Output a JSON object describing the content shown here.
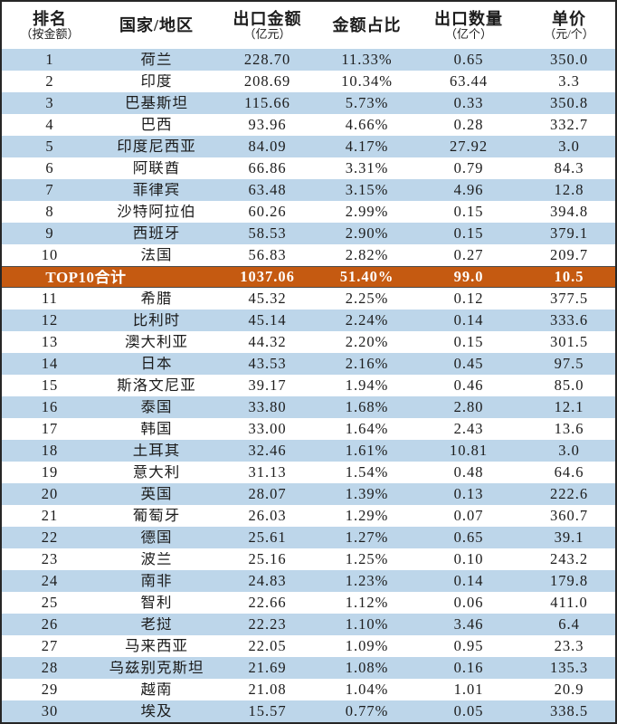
{
  "chart_data": {
    "type": "table",
    "columns": [
      {
        "title": "排名",
        "sub": "（按金额）"
      },
      {
        "title": "国家/地区",
        "sub": ""
      },
      {
        "title": "出口金额",
        "sub": "（亿元）"
      },
      {
        "title": "金额占比",
        "sub": ""
      },
      {
        "title": "出口数量",
        "sub": "（亿个）"
      },
      {
        "title": "单价",
        "sub": "（元/个）"
      }
    ],
    "rows": [
      {
        "rank": "1",
        "country": "荷兰",
        "amount": "228.70",
        "share": "11.33%",
        "qty": "0.65",
        "price": "350.0"
      },
      {
        "rank": "2",
        "country": "印度",
        "amount": "208.69",
        "share": "10.34%",
        "qty": "63.44",
        "price": "3.3"
      },
      {
        "rank": "3",
        "country": "巴基斯坦",
        "amount": "115.66",
        "share": "5.73%",
        "qty": "0.33",
        "price": "350.8"
      },
      {
        "rank": "4",
        "country": "巴西",
        "amount": "93.96",
        "share": "4.66%",
        "qty": "0.28",
        "price": "332.7"
      },
      {
        "rank": "5",
        "country": "印度尼西亚",
        "amount": "84.09",
        "share": "4.17%",
        "qty": "27.92",
        "price": "3.0"
      },
      {
        "rank": "6",
        "country": "阿联酋",
        "amount": "66.86",
        "share": "3.31%",
        "qty": "0.79",
        "price": "84.3"
      },
      {
        "rank": "7",
        "country": "菲律宾",
        "amount": "63.48",
        "share": "3.15%",
        "qty": "4.96",
        "price": "12.8"
      },
      {
        "rank": "8",
        "country": "沙特阿拉伯",
        "amount": "60.26",
        "share": "2.99%",
        "qty": "0.15",
        "price": "394.8"
      },
      {
        "rank": "9",
        "country": "西班牙",
        "amount": "58.53",
        "share": "2.90%",
        "qty": "0.15",
        "price": "379.1"
      },
      {
        "rank": "10",
        "country": "法国",
        "amount": "56.83",
        "share": "2.82%",
        "qty": "0.27",
        "price": "209.7"
      },
      {
        "rank": "11",
        "country": "希腊",
        "amount": "45.32",
        "share": "2.25%",
        "qty": "0.12",
        "price": "377.5"
      },
      {
        "rank": "12",
        "country": "比利时",
        "amount": "45.14",
        "share": "2.24%",
        "qty": "0.14",
        "price": "333.6"
      },
      {
        "rank": "13",
        "country": "澳大利亚",
        "amount": "44.32",
        "share": "2.20%",
        "qty": "0.15",
        "price": "301.5"
      },
      {
        "rank": "14",
        "country": "日本",
        "amount": "43.53",
        "share": "2.16%",
        "qty": "0.45",
        "price": "97.5"
      },
      {
        "rank": "15",
        "country": "斯洛文尼亚",
        "amount": "39.17",
        "share": "1.94%",
        "qty": "0.46",
        "price": "85.0"
      },
      {
        "rank": "16",
        "country": "泰国",
        "amount": "33.80",
        "share": "1.68%",
        "qty": "2.80",
        "price": "12.1"
      },
      {
        "rank": "17",
        "country": "韩国",
        "amount": "33.00",
        "share": "1.64%",
        "qty": "2.43",
        "price": "13.6"
      },
      {
        "rank": "18",
        "country": "土耳其",
        "amount": "32.46",
        "share": "1.61%",
        "qty": "10.81",
        "price": "3.0"
      },
      {
        "rank": "19",
        "country": "意大利",
        "amount": "31.13",
        "share": "1.54%",
        "qty": "0.48",
        "price": "64.6"
      },
      {
        "rank": "20",
        "country": "英国",
        "amount": "28.07",
        "share": "1.39%",
        "qty": "0.13",
        "price": "222.6"
      },
      {
        "rank": "21",
        "country": "葡萄牙",
        "amount": "26.03",
        "share": "1.29%",
        "qty": "0.07",
        "price": "360.7"
      },
      {
        "rank": "22",
        "country": "德国",
        "amount": "25.61",
        "share": "1.27%",
        "qty": "0.65",
        "price": "39.1"
      },
      {
        "rank": "23",
        "country": "波兰",
        "amount": "25.16",
        "share": "1.25%",
        "qty": "0.10",
        "price": "243.2"
      },
      {
        "rank": "24",
        "country": "南非",
        "amount": "24.83",
        "share": "1.23%",
        "qty": "0.14",
        "price": "179.8"
      },
      {
        "rank": "25",
        "country": "智利",
        "amount": "22.66",
        "share": "1.12%",
        "qty": "0.06",
        "price": "411.0"
      },
      {
        "rank": "26",
        "country": "老挝",
        "amount": "22.23",
        "share": "1.10%",
        "qty": "3.46",
        "price": "6.4"
      },
      {
        "rank": "27",
        "country": "马来西亚",
        "amount": "22.05",
        "share": "1.09%",
        "qty": "0.95",
        "price": "23.3"
      },
      {
        "rank": "28",
        "country": "乌兹别克斯坦",
        "amount": "21.69",
        "share": "1.08%",
        "qty": "0.16",
        "price": "135.3"
      },
      {
        "rank": "29",
        "country": "越南",
        "amount": "21.08",
        "share": "1.04%",
        "qty": "1.01",
        "price": "20.9"
      },
      {
        "rank": "30",
        "country": "埃及",
        "amount": "15.57",
        "share": "0.77%",
        "qty": "0.05",
        "price": "338.5"
      }
    ],
    "total_row": {
      "label": "TOP10合计",
      "amount": "1037.06",
      "share": "51.40%",
      "qty": "99.0",
      "price": "10.5",
      "insert_after_rank": 10
    },
    "layout": {
      "stripe_pattern": "alternating",
      "grid": "none"
    },
    "colors": {
      "stripe_blue": "#BDD6EA",
      "stripe_white": "#FFFFFF",
      "total_orange": "#C55A11",
      "total_text": "#FFFFFF",
      "border_dark": "#262626",
      "text": "#1C1C1C"
    }
  }
}
